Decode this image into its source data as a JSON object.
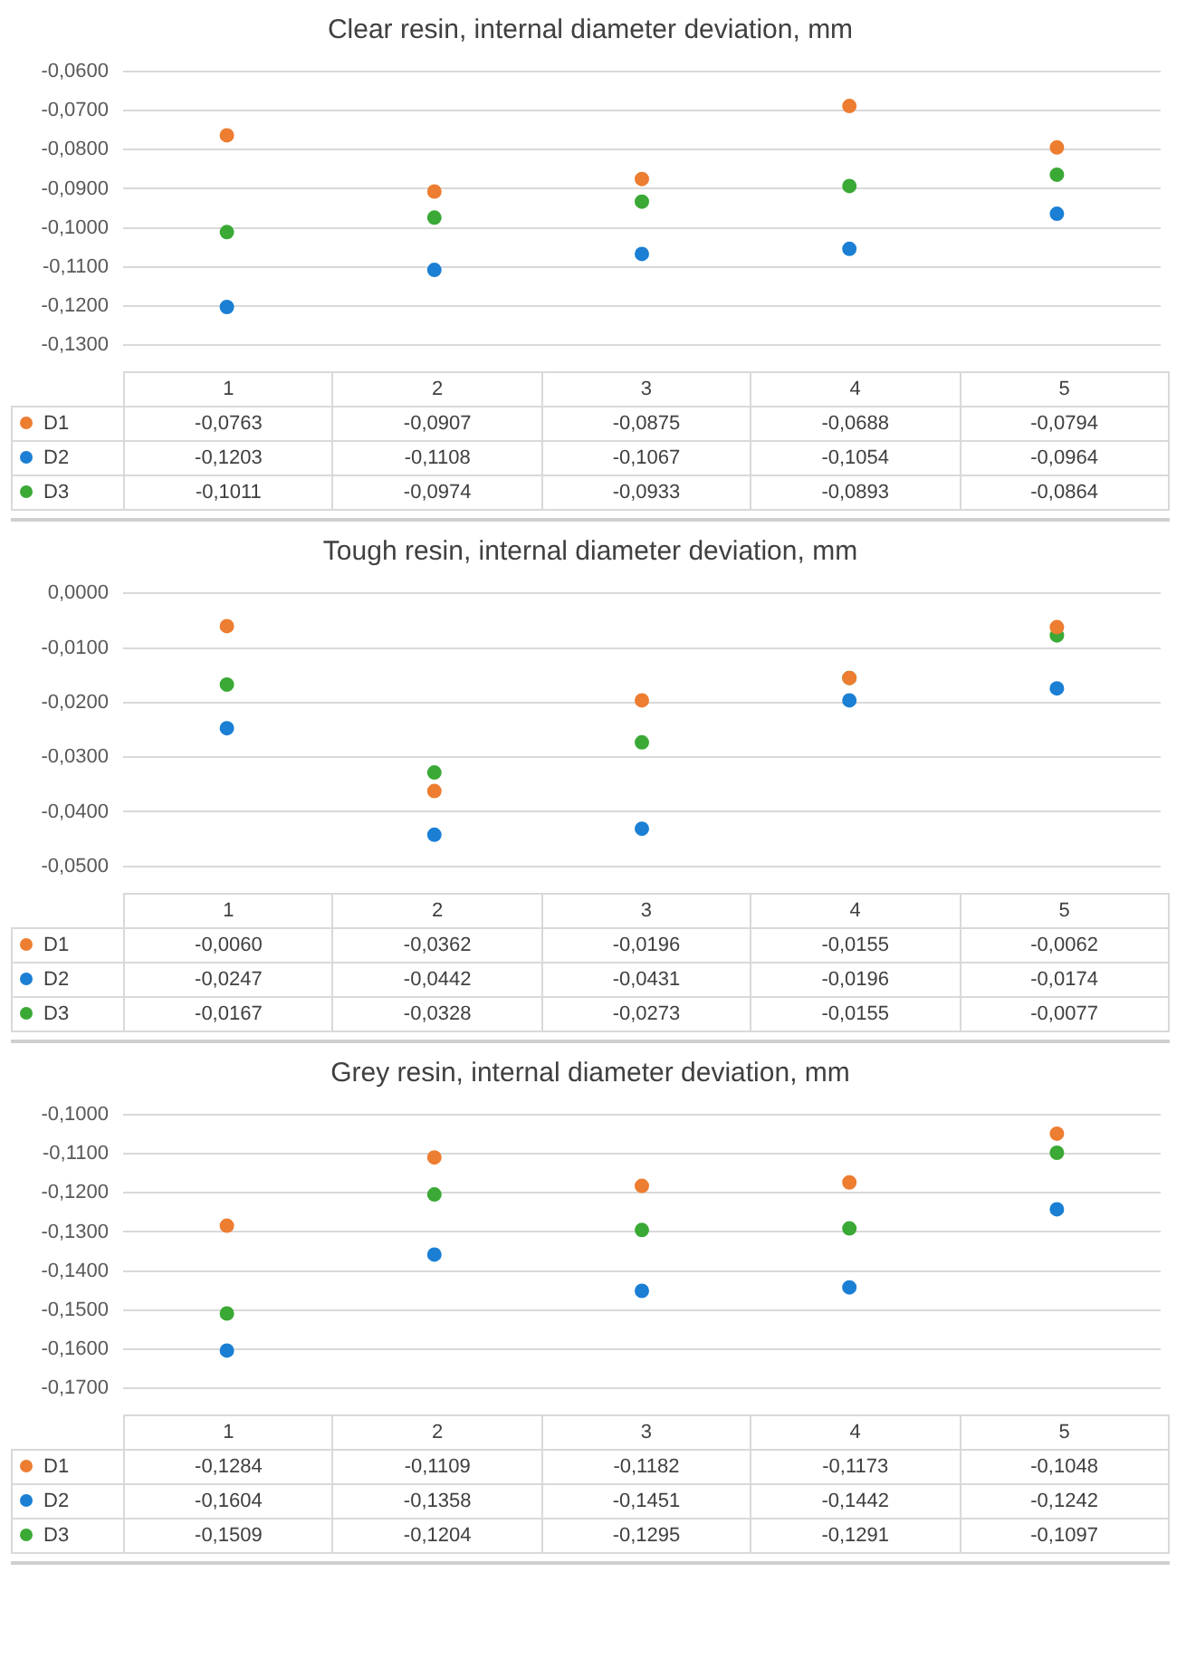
{
  "chart_data": [
    {
      "type": "scatter",
      "title": "Clear resin, internal diameter deviation, mm",
      "categories": [
        "1",
        "2",
        "3",
        "4",
        "5"
      ],
      "series": [
        {
          "name": "D1",
          "color": "#ed7d31",
          "values": [
            -0.0763,
            -0.0907,
            -0.0875,
            -0.0688,
            -0.0794
          ],
          "value_labels": [
            "-0,0763",
            "-0,0907",
            "-0,0875",
            "-0,0688",
            "-0,0794"
          ]
        },
        {
          "name": "D2",
          "color": "#1b7fd4",
          "values": [
            -0.1203,
            -0.1108,
            -0.1067,
            -0.1054,
            -0.0964
          ],
          "value_labels": [
            "-0,1203",
            "-0,1108",
            "-0,1067",
            "-0,1054",
            "-0,0964"
          ]
        },
        {
          "name": "D3",
          "color": "#3aa935",
          "values": [
            -0.1011,
            -0.0974,
            -0.0933,
            -0.0893,
            -0.0864
          ],
          "value_labels": [
            "-0,1011",
            "-0,0974",
            "-0,0933",
            "-0,0893",
            "-0,0864"
          ]
        }
      ],
      "ylim": [
        -0.13,
        -0.06
      ],
      "yticks": [
        {
          "value": -0.06,
          "label": "-0,0600"
        },
        {
          "value": -0.07,
          "label": "-0,0700"
        },
        {
          "value": -0.08,
          "label": "-0,0800"
        },
        {
          "value": -0.09,
          "label": "-0,0900"
        },
        {
          "value": -0.1,
          "label": "-0,1000"
        },
        {
          "value": -0.11,
          "label": "-0,1100"
        },
        {
          "value": -0.12,
          "label": "-0,1200"
        },
        {
          "value": -0.13,
          "label": "-0,1300"
        }
      ],
      "grid": "y",
      "marker": "circle",
      "legend": "bottom"
    },
    {
      "type": "scatter",
      "title": "Tough resin, internal diameter deviation, mm",
      "categories": [
        "1",
        "2",
        "3",
        "4",
        "5"
      ],
      "series": [
        {
          "name": "D1",
          "color": "#ed7d31",
          "values": [
            -0.006,
            -0.0362,
            -0.0196,
            -0.0155,
            -0.0062
          ],
          "value_labels": [
            "-0,0060",
            "-0,0362",
            "-0,0196",
            "-0,0155",
            "-0,0062"
          ]
        },
        {
          "name": "D2",
          "color": "#1b7fd4",
          "values": [
            -0.0247,
            -0.0442,
            -0.0431,
            -0.0196,
            -0.0174
          ],
          "value_labels": [
            "-0,0247",
            "-0,0442",
            "-0,0431",
            "-0,0196",
            "-0,0174"
          ]
        },
        {
          "name": "D3",
          "color": "#3aa935",
          "values": [
            -0.0167,
            -0.0328,
            -0.0273,
            -0.0155,
            -0.0077
          ],
          "value_labels": [
            "-0,0167",
            "-0,0328",
            "-0,0273",
            "-0,0155",
            "-0,0077"
          ]
        }
      ],
      "ylim": [
        -0.05,
        0
      ],
      "yticks": [
        {
          "value": 0,
          "label": "0,0000"
        },
        {
          "value": -0.01,
          "label": "-0,0100"
        },
        {
          "value": -0.02,
          "label": "-0,0200"
        },
        {
          "value": -0.03,
          "label": "-0,0300"
        },
        {
          "value": -0.04,
          "label": "-0,0400"
        },
        {
          "value": -0.05,
          "label": "-0,0500"
        }
      ],
      "grid": "y",
      "marker": "circle",
      "legend": "bottom"
    },
    {
      "type": "scatter",
      "title": "Grey resin, internal diameter deviation, mm",
      "categories": [
        "1",
        "2",
        "3",
        "4",
        "5"
      ],
      "series": [
        {
          "name": "D1",
          "color": "#ed7d31",
          "values": [
            -0.1284,
            -0.1109,
            -0.1182,
            -0.1173,
            -0.1048
          ],
          "value_labels": [
            "-0,1284",
            "-0,1109",
            "-0,1182",
            "-0,1173",
            "-0,1048"
          ]
        },
        {
          "name": "D2",
          "color": "#1b7fd4",
          "values": [
            -0.1604,
            -0.1358,
            -0.1451,
            -0.1442,
            -0.1242
          ],
          "value_labels": [
            "-0,1604",
            "-0,1358",
            "-0,1451",
            "-0,1442",
            "-0,1242"
          ]
        },
        {
          "name": "D3",
          "color": "#3aa935",
          "values": [
            -0.1509,
            -0.1204,
            -0.1295,
            -0.1291,
            -0.1097
          ],
          "value_labels": [
            "-0,1509",
            "-0,1204",
            "-0,1295",
            "-0,1291",
            "-0,1097"
          ]
        }
      ],
      "ylim": [
        -0.17,
        -0.1
      ],
      "yticks": [
        {
          "value": -0.1,
          "label": "-0,1000"
        },
        {
          "value": -0.11,
          "label": "-0,1100"
        },
        {
          "value": -0.12,
          "label": "-0,1200"
        },
        {
          "value": -0.13,
          "label": "-0,1300"
        },
        {
          "value": -0.14,
          "label": "-0,1400"
        },
        {
          "value": -0.15,
          "label": "-0,1500"
        },
        {
          "value": -0.16,
          "label": "-0,1600"
        },
        {
          "value": -0.17,
          "label": "-0,1700"
        }
      ],
      "grid": "y",
      "marker": "circle",
      "legend": "bottom"
    }
  ]
}
